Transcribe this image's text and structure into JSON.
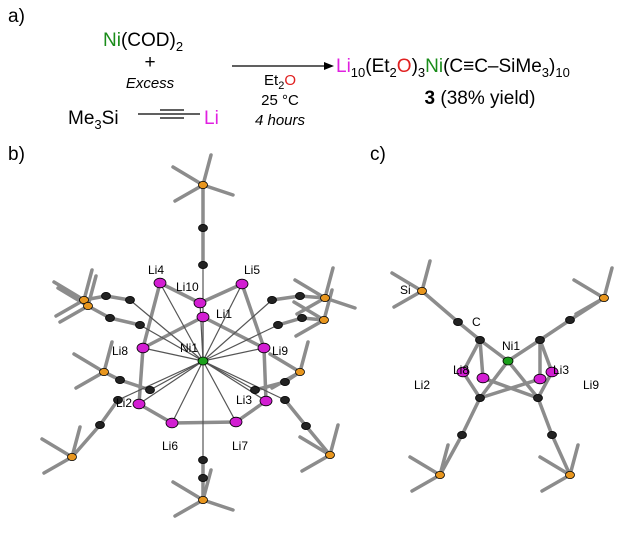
{
  "panel_a": {
    "label": "a)",
    "reagent": [
      "Ni",
      "(COD)",
      "2"
    ],
    "plus": "+",
    "excess": "Excess",
    "alkyne": [
      "Me",
      "3",
      "Si",
      "Li"
    ],
    "conditions": {
      "solvent": [
        "Et",
        "2",
        "O"
      ],
      "temperature": "25 °C",
      "time": "4 hours"
    },
    "product": [
      "Li",
      "10",
      "(Et",
      "2",
      "O",
      ")",
      "3",
      "Ni",
      "(C≡C–SiMe",
      "3",
      ")",
      "10"
    ],
    "yield": [
      "3",
      " (38% yield)"
    ]
  },
  "panel_b": {
    "label": "b)",
    "atoms": [
      "Li4",
      "Li5",
      "Li10",
      "Li1",
      "Li8",
      "Ni1",
      "Li9",
      "Li2",
      "Li3",
      "Li6",
      "Li7"
    ]
  },
  "panel_c": {
    "label": "c)",
    "atoms": [
      "Si",
      "C",
      "Ni1",
      "Li8",
      "Li2",
      "Li3",
      "Li9"
    ]
  }
}
